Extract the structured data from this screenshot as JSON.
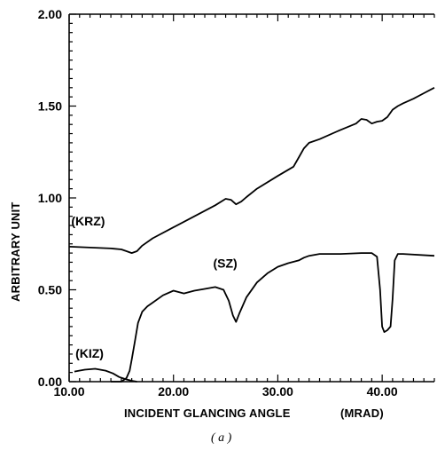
{
  "chart_data": {
    "type": "line",
    "xlabel": "INCIDENT GLANCING ANGLE",
    "xlabel_unit": "(MRAD)",
    "ylabel": "ARBITRARY UNIT",
    "caption": "( a )",
    "xlim": [
      10.0,
      45.0
    ],
    "ylim": [
      0.0,
      2.0
    ],
    "x_ticks": [
      "10.00",
      "20.00",
      "30.00",
      "40.00"
    ],
    "x_tick_values": [
      10,
      20,
      30,
      40
    ],
    "y_ticks": [
      "0.00",
      "0.50",
      "1.00",
      "1.50",
      "2.00"
    ],
    "y_tick_values": [
      0,
      0.5,
      1.0,
      1.5,
      2.0
    ],
    "series": [
      {
        "name": "(KRZ)",
        "label_at": [
          10.2,
          0.85
        ],
        "x": [
          10.0,
          12.0,
          14.0,
          15.0,
          15.5,
          16.0,
          16.5,
          17.0,
          18.0,
          20.0,
          22.0,
          24.0,
          25.0,
          25.5,
          26.0,
          26.5,
          27.0,
          28.0,
          30.0,
          31.5,
          32.0,
          32.5,
          33.0,
          34.0,
          36.0,
          37.5,
          38.0,
          38.5,
          39.0,
          39.5,
          40.0,
          40.5,
          41.0,
          41.5,
          42.0,
          43.0,
          44.0,
          45.0
        ],
        "y": [
          0.735,
          0.73,
          0.725,
          0.72,
          0.71,
          0.7,
          0.71,
          0.74,
          0.78,
          0.84,
          0.9,
          0.96,
          0.995,
          0.99,
          0.965,
          0.98,
          1.005,
          1.05,
          1.12,
          1.17,
          1.22,
          1.27,
          1.3,
          1.32,
          1.37,
          1.405,
          1.43,
          1.425,
          1.405,
          1.415,
          1.42,
          1.44,
          1.48,
          1.5,
          1.515,
          1.54,
          1.57,
          1.6
        ]
      },
      {
        "name": "(SZ)",
        "label_at": [
          23.8,
          0.62
        ],
        "x": [
          14.0,
          15.0,
          15.5,
          15.8,
          16.0,
          16.3,
          16.6,
          17.0,
          17.5,
          18.0,
          19.0,
          20.0,
          21.0,
          22.0,
          23.0,
          24.0,
          24.8,
          25.3,
          25.7,
          26.0,
          26.3,
          27.0,
          28.0,
          29.0,
          30.0,
          31.0,
          32.0,
          32.5,
          33.0,
          34.0,
          36.0,
          38.0,
          39.0,
          39.5,
          39.8,
          40.0,
          40.2,
          40.5,
          40.8,
          41.0,
          41.2,
          41.5,
          42.0,
          45.0
        ],
        "y": [
          0.0,
          0.0,
          0.02,
          0.06,
          0.12,
          0.22,
          0.32,
          0.38,
          0.41,
          0.43,
          0.47,
          0.495,
          0.48,
          0.495,
          0.505,
          0.515,
          0.5,
          0.44,
          0.36,
          0.325,
          0.37,
          0.46,
          0.54,
          0.59,
          0.625,
          0.645,
          0.66,
          0.675,
          0.685,
          0.695,
          0.695,
          0.7,
          0.7,
          0.68,
          0.5,
          0.3,
          0.27,
          0.28,
          0.3,
          0.45,
          0.66,
          0.695,
          0.695,
          0.685
        ]
      },
      {
        "name": "(KIZ)",
        "label_at": [
          10.6,
          0.13
        ],
        "x": [
          10.5,
          11.5,
          12.5,
          13.5,
          14.2,
          14.8,
          15.5,
          16.0,
          16.5
        ],
        "y": [
          0.055,
          0.065,
          0.07,
          0.06,
          0.045,
          0.025,
          0.012,
          0.005,
          0.0
        ]
      }
    ]
  }
}
